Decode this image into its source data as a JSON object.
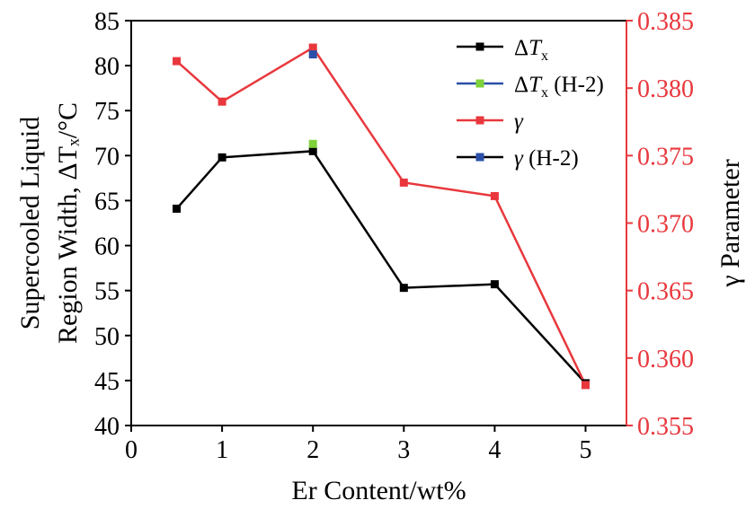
{
  "chart_data": {
    "type": "line",
    "xlabel": "Er Content/wt%",
    "ylabel_left": [
      "Supercooled Liquid",
      "Region Width, ΔTₓ/°C"
    ],
    "ylabel_right": "γ Parameter",
    "xlim": [
      0,
      5.45
    ],
    "ylim_left": [
      40,
      85
    ],
    "ylim_right": [
      0.355,
      0.385
    ],
    "x_ticks": [
      0,
      1,
      2,
      3,
      4,
      5
    ],
    "x_tick_labels": [
      "0",
      "1",
      "2",
      "3",
      "4",
      "5"
    ],
    "y_left_ticks": [
      40,
      45,
      50,
      55,
      60,
      65,
      70,
      75,
      80,
      85
    ],
    "y_left_tick_labels": [
      "40",
      "45",
      "50",
      "55",
      "60",
      "65",
      "70",
      "75",
      "80",
      "85"
    ],
    "y_right_ticks": [
      0.355,
      0.36,
      0.365,
      0.37,
      0.375,
      0.38,
      0.385
    ],
    "y_right_tick_labels": [
      "0.355",
      "0.360",
      "0.365",
      "0.370",
      "0.375",
      "0.380",
      "0.385"
    ],
    "grid": false,
    "legend_position": "top-right",
    "series": [
      {
        "name": "ΔTx",
        "axis": "left",
        "color": "#000000",
        "line": true,
        "x": [
          0.5,
          1,
          2,
          3,
          4,
          5
        ],
        "y": [
          64.1,
          69.8,
          70.5,
          55.3,
          55.7,
          44.7
        ]
      },
      {
        "name": "ΔTx (H-2)",
        "axis": "left",
        "color": "#7ed23a",
        "line": false,
        "x": [
          2
        ],
        "y": [
          71.3
        ]
      },
      {
        "name": "γ",
        "axis": "right",
        "color": "#e8383d",
        "line": true,
        "x": [
          0.5,
          1,
          2,
          3,
          4,
          5
        ],
        "y": [
          0.382,
          0.379,
          0.383,
          0.373,
          0.372,
          0.358
        ]
      },
      {
        "name": "γ (H-2)",
        "axis": "right",
        "color": "#2a4fa8",
        "line": false,
        "x": [
          2
        ],
        "y": [
          0.3825
        ]
      }
    ],
    "legend": [
      {
        "prefix": "Δ",
        "italic": "T",
        "sub": "x",
        "suffix": "",
        "line_color": "#000000",
        "marker_color": "#000000"
      },
      {
        "prefix": "Δ",
        "italic": "T",
        "sub": "x",
        "suffix": " (H-2)",
        "line_color": "#2a4fa8",
        "marker_color": "#7ed23a"
      },
      {
        "prefix": "",
        "italic": "γ",
        "sub": "",
        "suffix": "",
        "line_color": "#e8383d",
        "marker_color": "#e8383d"
      },
      {
        "prefix": "",
        "italic": "γ",
        "sub": "",
        "suffix": " (H-2)",
        "line_color": "#000000",
        "marker_color": "#2a4fa8"
      }
    ],
    "colors": {
      "left_axis": "#000000",
      "right_axis": "#e8383d"
    }
  }
}
